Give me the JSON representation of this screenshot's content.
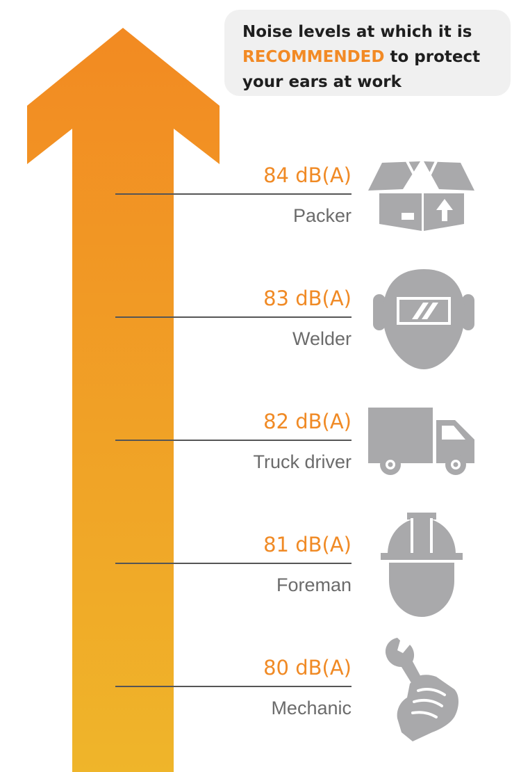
{
  "callout": {
    "line1": "Noise levels at which it is",
    "highlight": "RECOMMENDED",
    "line2_rest": " to protect",
    "line3": "your ears at work"
  },
  "levels": [
    {
      "value": "84 dB(A)",
      "job": "Packer",
      "icon": "box-icon"
    },
    {
      "value": "83 dB(A)",
      "job": "Welder",
      "icon": "welding-mask-icon"
    },
    {
      "value": "82 dB(A)",
      "job": "Truck driver",
      "icon": "truck-icon"
    },
    {
      "value": "81 dB(A)",
      "job": "Foreman",
      "icon": "hard-hat-icon"
    },
    {
      "value": "80 dB(A)",
      "job": "Mechanic",
      "icon": "wrench-hand-icon"
    }
  ],
  "colors": {
    "arrow_top": "#f28a22",
    "arrow_bottom": "#efb52a",
    "value_text": "#f08a25",
    "label_text": "#6b6b6b",
    "icon_fill": "#a9a9ab",
    "callout_bg": "#f0f0f0"
  }
}
